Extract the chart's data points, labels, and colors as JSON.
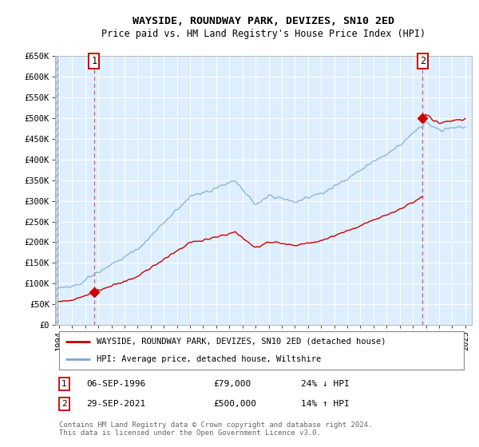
{
  "title": "WAYSIDE, ROUNDWAY PARK, DEVIZES, SN10 2ED",
  "subtitle": "Price paid vs. HM Land Registry's House Price Index (HPI)",
  "ylim": [
    0,
    650000
  ],
  "yticks": [
    0,
    50000,
    100000,
    150000,
    200000,
    250000,
    300000,
    350000,
    400000,
    450000,
    500000,
    550000,
    600000,
    650000
  ],
  "ytick_labels": [
    "£0",
    "£50K",
    "£100K",
    "£150K",
    "£200K",
    "£250K",
    "£300K",
    "£350K",
    "£400K",
    "£450K",
    "£500K",
    "£550K",
    "£600K",
    "£650K"
  ],
  "xlim_start": 1993.7,
  "xlim_end": 2025.5,
  "transaction1_x": 1996.67,
  "transaction1_y": 79000,
  "transaction1_label": "1",
  "transaction1_date": "06-SEP-1996",
  "transaction1_price": "£79,000",
  "transaction1_hpi": "24% ↓ HPI",
  "transaction2_x": 2021.75,
  "transaction2_y": 500000,
  "transaction2_label": "2",
  "transaction2_date": "29-SEP-2021",
  "transaction2_price": "£500,000",
  "transaction2_hpi": "14% ↑ HPI",
  "red_color": "#cc0000",
  "blue_color": "#7aaad0",
  "bg_color": "#ddeeff",
  "grid_color": "#ffffff",
  "legend_line1": "WAYSIDE, ROUNDWAY PARK, DEVIZES, SN10 2ED (detached house)",
  "legend_line2": "HPI: Average price, detached house, Wiltshire",
  "footer": "Contains HM Land Registry data © Crown copyright and database right 2024.\nThis data is licensed under the Open Government Licence v3.0.",
  "xticks": [
    1994,
    1995,
    1996,
    1997,
    1998,
    1999,
    2000,
    2001,
    2002,
    2003,
    2004,
    2005,
    2006,
    2007,
    2008,
    2009,
    2010,
    2011,
    2012,
    2013,
    2014,
    2015,
    2016,
    2017,
    2018,
    2019,
    2020,
    2021,
    2022,
    2023,
    2024,
    2025
  ]
}
